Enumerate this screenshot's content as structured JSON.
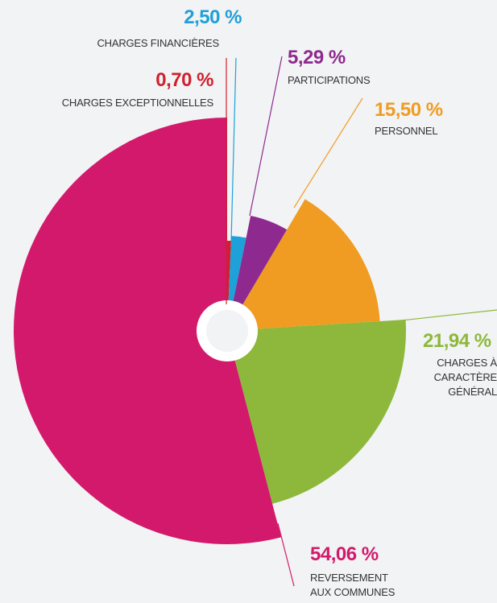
{
  "chart_data": {
    "type": "pie",
    "categories": [
      "CHARGES EXCEPTIONNELLES",
      "CHARGES FINANCIÈRES",
      "PARTICIPATIONS",
      "PERSONNEL",
      "CHARGES À\nCARACTÈRE\nGÉNÉRAL",
      "REVERSEMENT\nAUX COMMUNES"
    ],
    "values": [
      0.7,
      2.5,
      5.29,
      15.5,
      21.94,
      54.06
    ],
    "value_labels": [
      "0,70 %",
      "2,50 %",
      "5,29 %",
      "15,50 %",
      "21,94 %",
      "54,06 %"
    ],
    "colors": [
      "#d0202e",
      "#1ea0d8",
      "#8e2a8f",
      "#f09c22",
      "#8db83c",
      "#d3196b"
    ]
  }
}
